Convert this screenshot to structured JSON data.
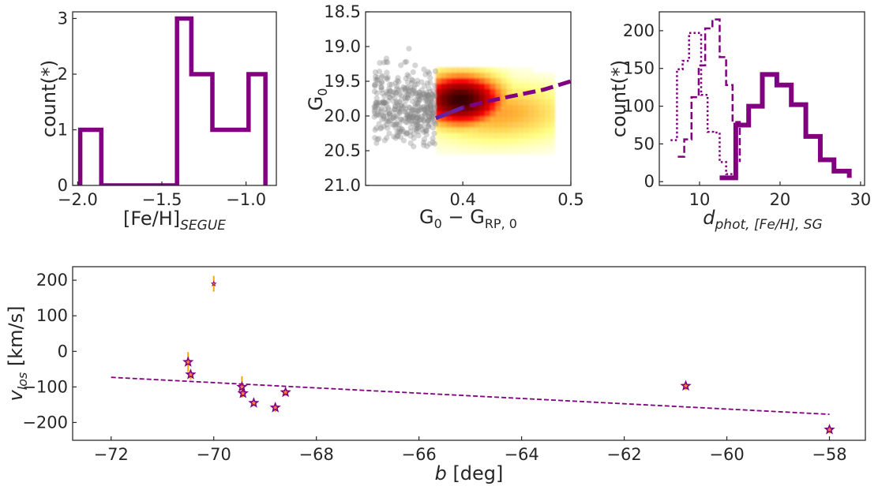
{
  "chart_data": [
    {
      "id": "p1",
      "type": "bar",
      "style": "step-histogram",
      "xlabel": "[Fe/H]",
      "xlabel_sub": "SEGUE",
      "ylabel": "count(*)",
      "xlim": [
        -2.03,
        -0.82
      ],
      "ylim": [
        0,
        3.12
      ],
      "xticks": [
        -2.0,
        -1.5,
        -1.0
      ],
      "xtick_labels": [
        "−2.0",
        "−1.5",
        "−1.0"
      ],
      "yticks": [
        0,
        1,
        2,
        3
      ],
      "ytick_labels": [
        "0",
        "1",
        "2",
        "3"
      ],
      "bin_edges": [
        -1.985,
        -1.86,
        -1.735,
        -1.61,
        -1.485,
        -1.41,
        -1.325,
        -1.2,
        -1.075,
        -0.985,
        -0.885
      ],
      "values": [
        1,
        0,
        0,
        0,
        0,
        3,
        2,
        1,
        1,
        2
      ],
      "color": "#800080"
    },
    {
      "id": "p2",
      "type": "heatmap",
      "xlabel": "G",
      "xlabel_sub": "0",
      "xlabel_mid": " − G",
      "xlabel_sub2": "RP, 0",
      "ylabel": "G",
      "ylabel_sub": "0",
      "xlim": [
        0.31,
        0.5
      ],
      "ylim": [
        21.0,
        18.5
      ],
      "xticks": [
        0.4,
        0.5
      ],
      "xtick_labels": [
        "0.4",
        "0.5"
      ],
      "yticks": [
        18.5,
        19.0,
        19.5,
        20.0,
        20.5,
        21.0
      ],
      "ytick_labels": [
        "18.5",
        "19.0",
        "19.5",
        "20.0",
        "20.5",
        "21.0"
      ],
      "color_cut": 0.375,
      "density_peak": [
        0.398,
        19.77
      ],
      "density_color_stops": [
        "#ffffff",
        "#ffff33",
        "#ff9900",
        "#ff0000",
        "#990000",
        "#330000"
      ],
      "scatter_color": "#888888",
      "isochrone": {
        "x": [
          0.375,
          0.4,
          0.425,
          0.45,
          0.475,
          0.5
        ],
        "y": [
          20.03,
          19.88,
          19.78,
          19.7,
          19.62,
          19.5
        ],
        "color": "#800080",
        "overlap_color": "#5b2fb0"
      }
    },
    {
      "id": "p3",
      "type": "bar",
      "style": "step-histogram",
      "xlabel": "d",
      "xlabel_sub": "phot, [Fe/H], SG",
      "ylabel": "count(*)",
      "xlim": [
        5,
        30.5
      ],
      "ylim": [
        -5,
        225
      ],
      "xticks": [
        10,
        20,
        30
      ],
      "xtick_labels": [
        "10",
        "20",
        "30"
      ],
      "yticks": [
        0,
        50,
        100,
        150,
        200
      ],
      "ytick_labels": [
        "0",
        "50",
        "100",
        "150",
        "200"
      ],
      "color": "#800080",
      "series": [
        {
          "name": "",
          "linestyle": "solid",
          "width": 6,
          "bin_edges": [
            12.5,
            14.5,
            16.1,
            17.8,
            19.6,
            21.4,
            23.2,
            25,
            26.7,
            28.6
          ],
          "values": [
            5,
            75,
            100,
            142,
            128,
            102,
            60,
            29,
            14,
            5
          ]
        },
        {
          "name": "",
          "linestyle": "dashed",
          "width": 2.5,
          "bin_edges": [
            7.3,
            8.1,
            9.0,
            9.9,
            10.7,
            11.6,
            12.5,
            13.3,
            14.1,
            15.0
          ],
          "values": [
            33,
            56,
            112,
            154,
            203,
            215,
            165,
            128,
            79,
            26
          ]
        },
        {
          "name": "",
          "linestyle": "dotted",
          "width": 2.5,
          "bin_edges": [
            6.4,
            7.2,
            7.9,
            8.7,
            9.4,
            10.2,
            11.0,
            11.7,
            12.5,
            13.3,
            14.1
          ],
          "values": [
            55,
            149,
            160,
            197,
            197,
            115,
            66,
            65,
            26,
            10
          ]
        }
      ]
    },
    {
      "id": "p4",
      "type": "scatter",
      "xlabel": "b",
      "xlabel_unit": " [deg]",
      "ylabel": "v",
      "ylabel_sub": "los",
      "ylabel_unit": " [km/s]",
      "xlim": [
        -72.75,
        -57.3
      ],
      "ylim": [
        -250,
        238
      ],
      "xticks": [
        -72,
        -70,
        -68,
        -66,
        -64,
        -62,
        -60,
        -58
      ],
      "xtick_labels": [
        "−72",
        "−70",
        "−68",
        "−66",
        "−64",
        "−62",
        "−60",
        "−58"
      ],
      "yticks": [
        -200,
        -100,
        0,
        100,
        200
      ],
      "ytick_labels": [
        "−200",
        "−100",
        "0",
        "100",
        "200"
      ],
      "marker": "star",
      "marker_color": "#800080",
      "marker_inner_color": "#ff8040",
      "errorbar_color": "#ffa500",
      "points": [
        {
          "x": -70.0,
          "y": 190,
          "err": 22
        },
        {
          "x": -70.5,
          "y": -30,
          "err": 28
        },
        {
          "x": -70.45,
          "y": -65,
          "err": 14
        },
        {
          "x": -69.45,
          "y": -100,
          "err": 30
        },
        {
          "x": -69.43,
          "y": -118,
          "err": 10
        },
        {
          "x": -69.22,
          "y": -145,
          "err": 8
        },
        {
          "x": -68.8,
          "y": -158,
          "err": 12
        },
        {
          "x": -68.6,
          "y": -115,
          "err": 10
        },
        {
          "x": -60.8,
          "y": -97,
          "err": 12
        },
        {
          "x": -58.0,
          "y": -220,
          "err": 10
        }
      ],
      "fit_line": {
        "x": [
          -72,
          -58
        ],
        "y": [
          -73,
          -177
        ],
        "color": "#800080",
        "linestyle": "dashed"
      }
    }
  ]
}
